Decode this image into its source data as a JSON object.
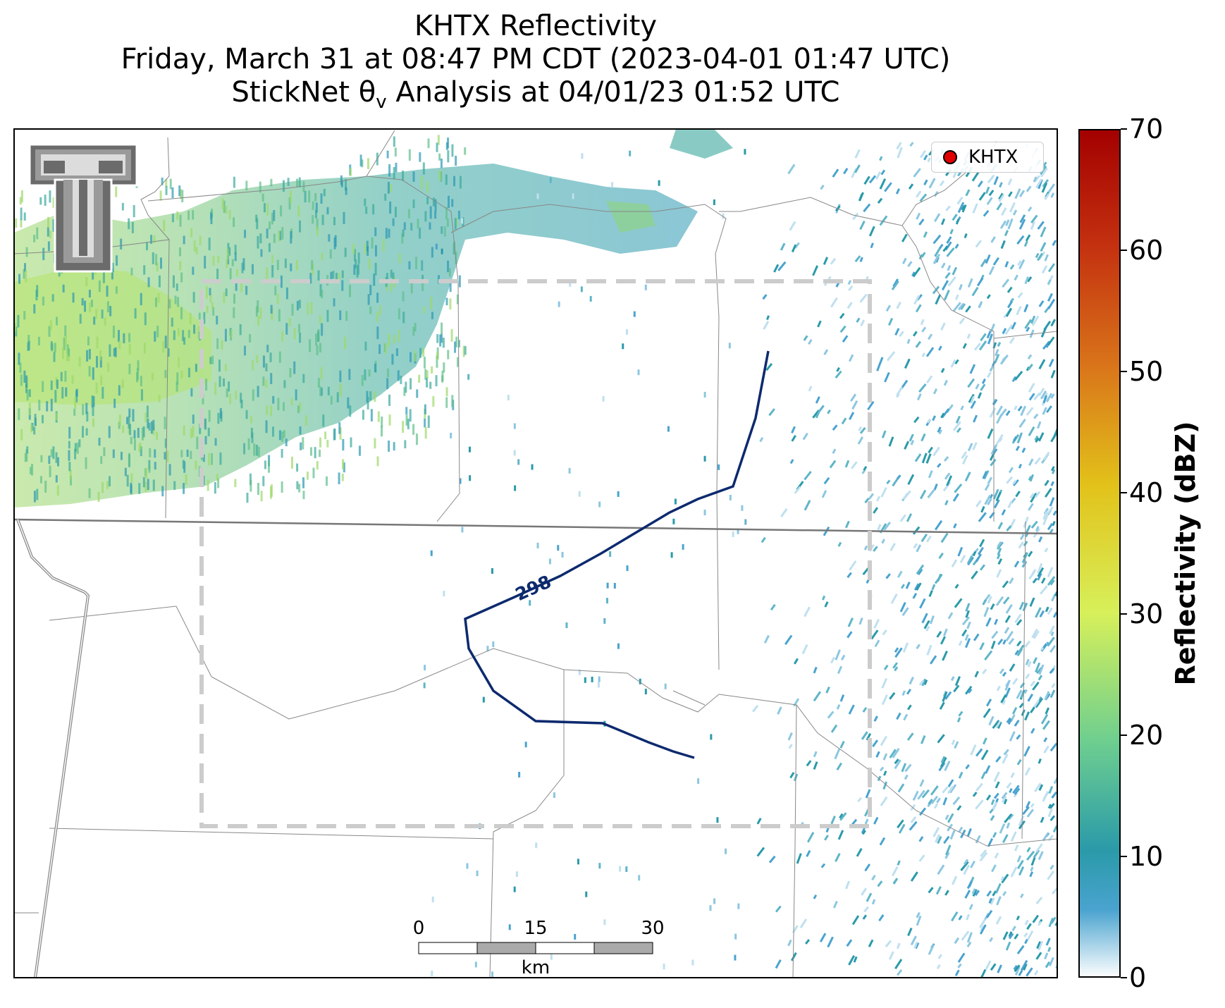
{
  "title": {
    "line1": "KHTX Reflectivity",
    "line2": "Friday, March 31 at 08:47 PM CDT (2023-04-01 01:47 UTC)",
    "line3": "StickNet θ",
    "line3_sub": "v",
    "line3_rest": " Analysis at 04/01/23 01:52 UTC"
  },
  "legend": {
    "label": "KHTX",
    "marker_color": "#e00000"
  },
  "contour": {
    "label": "298",
    "color": "#0d2a6e"
  },
  "colorbar": {
    "label": "Reflectivity (dBZ)",
    "ticks": [
      "0",
      "10",
      "20",
      "30",
      "40",
      "50",
      "60",
      "70"
    ],
    "min": 0,
    "max": 70,
    "colors": [
      "#ffffff",
      "#4aa3cf",
      "#2a9aa9",
      "#6fcf8f",
      "#d7f05a",
      "#e2c21a",
      "#d9751a",
      "#c43210",
      "#a30000"
    ]
  },
  "scalebar": {
    "ticks": [
      "0",
      "15",
      "30"
    ],
    "unit": "km"
  },
  "logo": {
    "name": "texas-tech-double-t-logo"
  },
  "analysis_box": {
    "style": "dashed",
    "color": "#cccccc"
  }
}
